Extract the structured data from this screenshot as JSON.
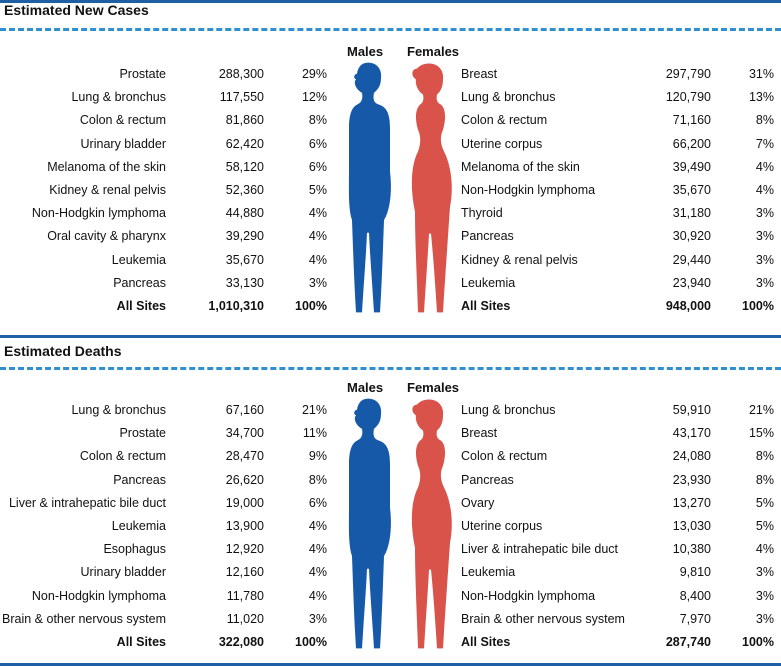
{
  "colors": {
    "male": "#1659a8",
    "female": "#d9534a",
    "rule": "#1e5fa6",
    "dash": "#2f8fd1"
  },
  "chart_data": [
    {
      "type": "table",
      "title": "Estimated New Cases",
      "males_label": "Males",
      "females_label": "Females",
      "males": [
        {
          "site": "Prostate",
          "count": "288,300",
          "pct": "29%"
        },
        {
          "site": "Lung & bronchus",
          "count": "117,550",
          "pct": "12%"
        },
        {
          "site": "Colon & rectum",
          "count": "81,860",
          "pct": "8%"
        },
        {
          "site": "Urinary bladder",
          "count": "62,420",
          "pct": "6%"
        },
        {
          "site": "Melanoma of the skin",
          "count": "58,120",
          "pct": "6%"
        },
        {
          "site": "Kidney & renal pelvis",
          "count": "52,360",
          "pct": "5%"
        },
        {
          "site": "Non-Hodgkin lymphoma",
          "count": "44,880",
          "pct": "4%"
        },
        {
          "site": "Oral cavity & pharynx",
          "count": "39,290",
          "pct": "4%"
        },
        {
          "site": "Leukemia",
          "count": "35,670",
          "pct": "4%"
        },
        {
          "site": "Pancreas",
          "count": "33,130",
          "pct": "3%"
        }
      ],
      "males_total": {
        "site": "All Sites",
        "count": "1,010,310",
        "pct": "100%"
      },
      "females": [
        {
          "site": "Breast",
          "count": "297,790",
          "pct": "31%"
        },
        {
          "site": "Lung & bronchus",
          "count": "120,790",
          "pct": "13%"
        },
        {
          "site": "Colon & rectum",
          "count": "71,160",
          "pct": "8%"
        },
        {
          "site": "Uterine corpus",
          "count": "66,200",
          "pct": "7%"
        },
        {
          "site": "Melanoma of the skin",
          "count": "39,490",
          "pct": "4%"
        },
        {
          "site": "Non-Hodgkin lymphoma",
          "count": "35,670",
          "pct": "4%"
        },
        {
          "site": "Thyroid",
          "count": "31,180",
          "pct": "3%"
        },
        {
          "site": "Pancreas",
          "count": "30,920",
          "pct": "3%"
        },
        {
          "site": "Kidney & renal pelvis",
          "count": "29,440",
          "pct": "3%"
        },
        {
          "site": "Leukemia",
          "count": "23,940",
          "pct": "3%"
        }
      ],
      "females_total": {
        "site": "All Sites",
        "count": "948,000",
        "pct": "100%"
      }
    },
    {
      "type": "table",
      "title": "Estimated Deaths",
      "males_label": "Males",
      "females_label": "Females",
      "males": [
        {
          "site": "Lung & bronchus",
          "count": "67,160",
          "pct": "21%"
        },
        {
          "site": "Prostate",
          "count": "34,700",
          "pct": "11%"
        },
        {
          "site": "Colon & rectum",
          "count": "28,470",
          "pct": "9%"
        },
        {
          "site": "Pancreas",
          "count": "26,620",
          "pct": "8%"
        },
        {
          "site": "Liver & intrahepatic bile duct",
          "count": "19,000",
          "pct": "6%"
        },
        {
          "site": "Leukemia",
          "count": "13,900",
          "pct": "4%"
        },
        {
          "site": "Esophagus",
          "count": "12,920",
          "pct": "4%"
        },
        {
          "site": "Urinary bladder",
          "count": "12,160",
          "pct": "4%"
        },
        {
          "site": "Non-Hodgkin lymphoma",
          "count": "11,780",
          "pct": "4%"
        },
        {
          "site": "Brain & other nervous system",
          "count": "11,020",
          "pct": "3%"
        }
      ],
      "males_total": {
        "site": "All Sites",
        "count": "322,080",
        "pct": "100%"
      },
      "females": [
        {
          "site": "Lung & bronchus",
          "count": "59,910",
          "pct": "21%"
        },
        {
          "site": "Breast",
          "count": "43,170",
          "pct": "15%"
        },
        {
          "site": "Colon & rectum",
          "count": "24,080",
          "pct": "8%"
        },
        {
          "site": "Pancreas",
          "count": "23,930",
          "pct": "8%"
        },
        {
          "site": "Ovary",
          "count": "13,270",
          "pct": "5%"
        },
        {
          "site": "Uterine corpus",
          "count": "13,030",
          "pct": "5%"
        },
        {
          "site": "Liver & intrahepatic bile duct",
          "count": "10,380",
          "pct": "4%"
        },
        {
          "site": "Leukemia",
          "count": "9,810",
          "pct": "3%"
        },
        {
          "site": "Non-Hodgkin lymphoma",
          "count": "8,400",
          "pct": "3%"
        },
        {
          "site": "Brain & other nervous system",
          "count": "7,970",
          "pct": "3%"
        }
      ],
      "females_total": {
        "site": "All Sites",
        "count": "287,740",
        "pct": "100%"
      }
    }
  ]
}
